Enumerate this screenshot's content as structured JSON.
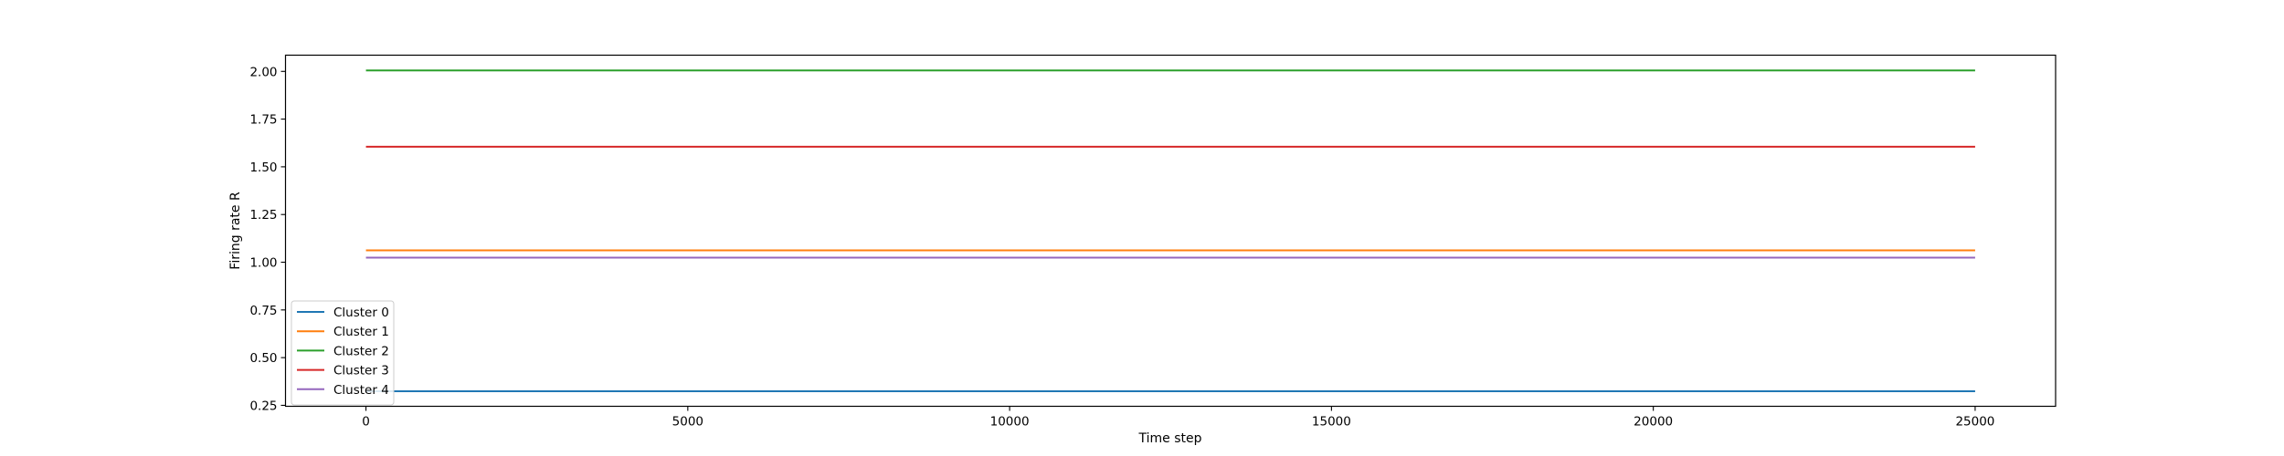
{
  "chart_data": {
    "type": "line",
    "title": "",
    "xlabel": "Time step",
    "ylabel": "Firing rate R",
    "xlim": [
      -1250,
      26250
    ],
    "ylim": [
      0.245,
      2.085
    ],
    "xticks": [
      0,
      5000,
      10000,
      15000,
      20000,
      25000
    ],
    "xtick_labels": [
      "0",
      "5000",
      "10000",
      "15000",
      "20000",
      "25000"
    ],
    "yticks": [
      0.25,
      0.5,
      0.75,
      1.0,
      1.25,
      1.5,
      1.75,
      2.0
    ],
    "ytick_labels": [
      "0.25",
      "0.50",
      "0.75",
      "1.00",
      "1.25",
      "1.50",
      "1.75",
      "2.00"
    ],
    "grid": false,
    "legend_position": "lower-left",
    "series": [
      {
        "name": "Cluster 0",
        "color": "#1f77b4",
        "x": [
          0,
          25000
        ],
        "y": [
          0.324,
          0.324
        ]
      },
      {
        "name": "Cluster 1",
        "color": "#ff7f0e",
        "x": [
          0,
          25000
        ],
        "y": [
          1.062,
          1.062
        ]
      },
      {
        "name": "Cluster 2",
        "color": "#2ca02c",
        "x": [
          0,
          25000
        ],
        "y": [
          2.005,
          2.005
        ]
      },
      {
        "name": "Cluster 3",
        "color": "#d62728",
        "x": [
          0,
          25000
        ],
        "y": [
          1.605,
          1.605
        ]
      },
      {
        "name": "Cluster 4",
        "color": "#9467bd",
        "x": [
          0,
          25000
        ],
        "y": [
          1.024,
          1.024
        ]
      }
    ]
  }
}
